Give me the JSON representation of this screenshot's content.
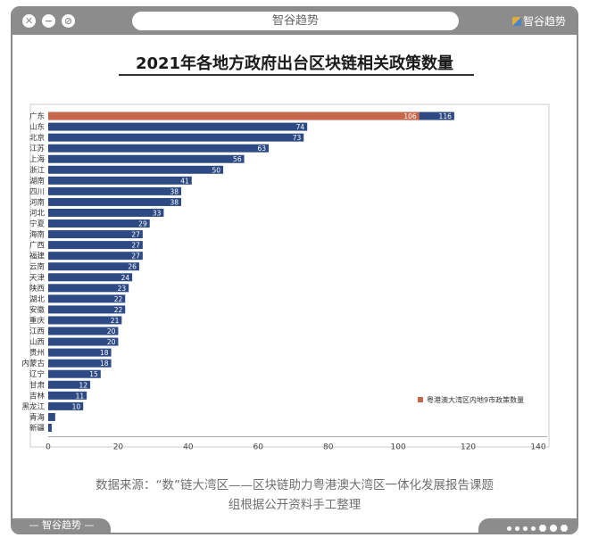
{
  "window": {
    "url_bar_text": "智谷趋势",
    "brand_top": "智谷趋势",
    "brand_bottom": "— 智谷趋势 —"
  },
  "source": {
    "line1": "数据来源：“数”链大湾区——区块链助力粤港澳大湾区一体化发展报告课题",
    "line2": "组根据公开资料手工整理"
  },
  "colors": {
    "bar": "#2d4a84",
    "highlight": "#c5674a",
    "frame": "#8c8c8c"
  },
  "chart_data": {
    "type": "bar",
    "orientation": "horizontal",
    "title": "2021年各地方政府出台区块链相关政策数量",
    "categories": [
      "广东",
      "山东",
      "北京",
      "江苏",
      "上海",
      "浙江",
      "湖南",
      "四川",
      "河南",
      "河北",
      "宁夏",
      "海南",
      "广西",
      "福建",
      "云南",
      "天津",
      "陕西",
      "湖北",
      "安徽",
      "重庆",
      "江西",
      "山西",
      "贵州",
      "内蒙古",
      "辽宁",
      "甘肃",
      "吉林",
      "黑龙江",
      "青海",
      "新疆"
    ],
    "series": [
      {
        "values": [
          116,
          74,
          73,
          63,
          56,
          50,
          41,
          38,
          38,
          33,
          29,
          27,
          27,
          27,
          26,
          24,
          23,
          22,
          22,
          21,
          20,
          20,
          18,
          18,
          15,
          12,
          11,
          10,
          2,
          1
        ]
      },
      {
        "name": "粤港澳大湾区内地9市政策数量",
        "values": [
          106,
          null,
          null,
          null,
          null,
          null,
          null,
          null,
          null,
          null,
          null,
          null,
          null,
          null,
          null,
          null,
          null,
          null,
          null,
          null,
          null,
          null,
          null,
          null,
          null,
          null,
          null,
          null,
          null,
          null
        ]
      }
    ],
    "xlim": [
      0,
      140
    ],
    "xticks": [
      0,
      20,
      40,
      60,
      80,
      100,
      120,
      140
    ],
    "grid": false,
    "legend_position": "bottom-right"
  }
}
